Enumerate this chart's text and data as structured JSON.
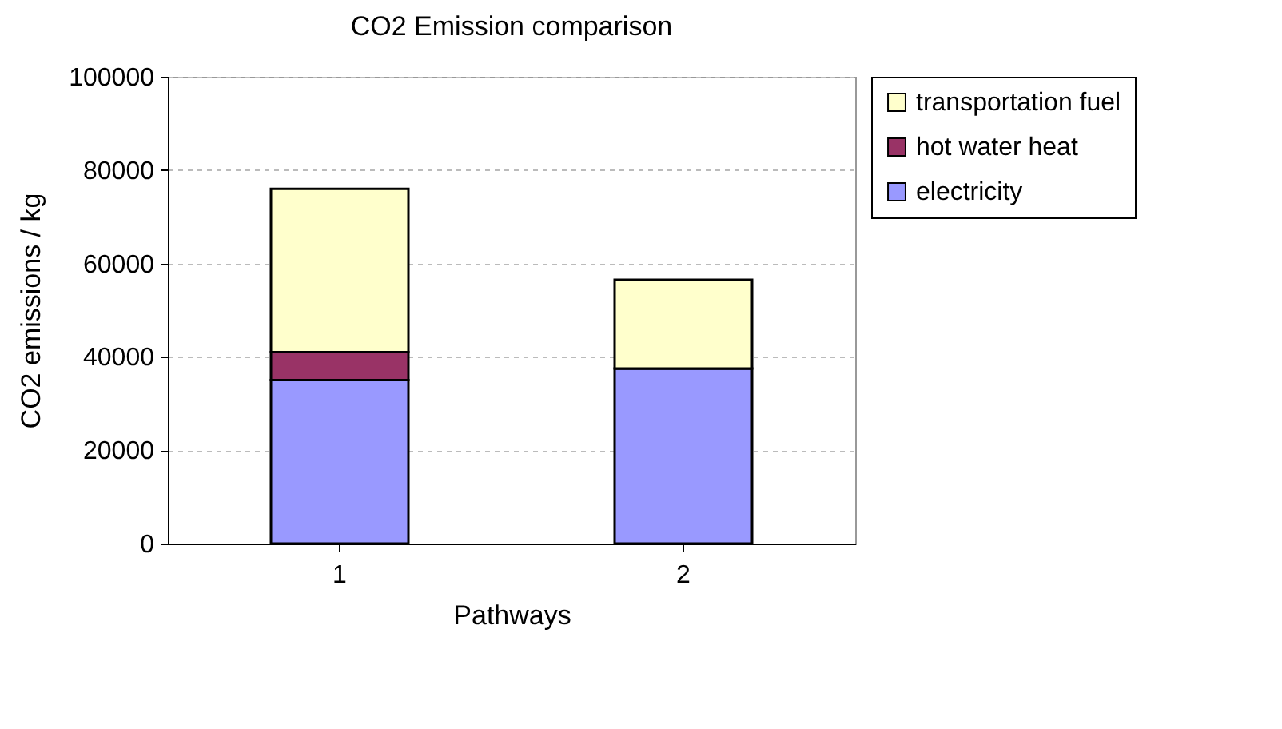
{
  "chart_data": {
    "type": "bar",
    "title": "CO2 Emission comparison",
    "xlabel": "Pathways",
    "ylabel": "CO2 emissions / kg",
    "categories": [
      "1",
      "2"
    ],
    "stacked": true,
    "series": [
      {
        "name": "electricity",
        "color": "#9999ff",
        "values": [
          35000,
          37500
        ]
      },
      {
        "name": "hot water heat",
        "color": "#993366",
        "values": [
          6000,
          0
        ]
      },
      {
        "name": "transportation fuel",
        "color": "#ffffcc",
        "values": [
          35000,
          19000
        ]
      }
    ],
    "ylim": [
      0,
      100000
    ],
    "yticks": [
      0,
      20000,
      40000,
      60000,
      80000,
      100000
    ],
    "grid": "y",
    "legend": "right"
  }
}
